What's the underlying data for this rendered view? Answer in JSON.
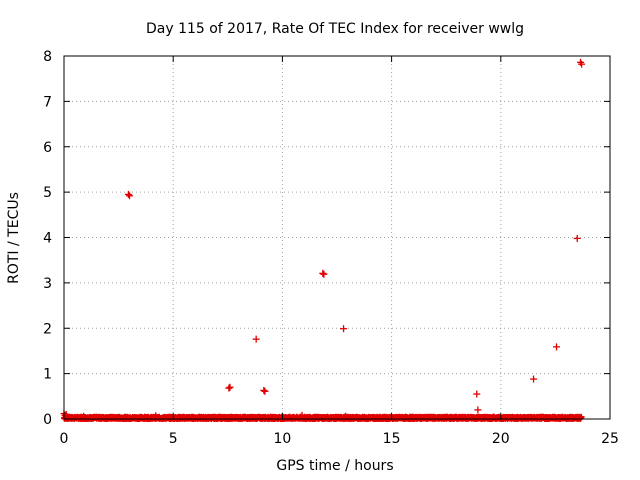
{
  "chart_data": {
    "type": "scatter",
    "title": "Day 115 of 2017, Rate Of TEC Index for receiver wwlg",
    "xlabel": "GPS time / hours",
    "ylabel": "ROTI / TECUs",
    "xlim": [
      0,
      25
    ],
    "ylim": [
      0,
      8
    ],
    "xticks": [
      "0",
      "5",
      "10",
      "15",
      "20",
      "25"
    ],
    "yticks": [
      "0",
      "1",
      "2",
      "3",
      "4",
      "5",
      "6",
      "7",
      "8"
    ],
    "grid": true,
    "marker": "+",
    "color": "#e00000",
    "baseline": {
      "x_start": 0,
      "x_end": 23.7,
      "x_step": 0.0083,
      "y_range": [
        0,
        0.05
      ]
    },
    "points": [
      {
        "x": 0.0,
        "y": 0.12
      },
      {
        "x": 0.05,
        "y": 0.08
      },
      {
        "x": 0.1,
        "y": 0.1
      },
      {
        "x": 0.9,
        "y": 0.06
      },
      {
        "x": 2.95,
        "y": 4.95
      },
      {
        "x": 3.0,
        "y": 4.92
      },
      {
        "x": 4.2,
        "y": 0.07
      },
      {
        "x": 7.55,
        "y": 0.68
      },
      {
        "x": 7.6,
        "y": 0.7
      },
      {
        "x": 8.8,
        "y": 1.76
      },
      {
        "x": 9.15,
        "y": 0.63
      },
      {
        "x": 9.2,
        "y": 0.61
      },
      {
        "x": 10.9,
        "y": 0.08
      },
      {
        "x": 11.85,
        "y": 3.21
      },
      {
        "x": 11.9,
        "y": 3.19
      },
      {
        "x": 12.8,
        "y": 1.99
      },
      {
        "x": 12.9,
        "y": 0.06
      },
      {
        "x": 18.9,
        "y": 0.55
      },
      {
        "x": 18.95,
        "y": 0.2
      },
      {
        "x": 21.5,
        "y": 0.88
      },
      {
        "x": 22.55,
        "y": 1.59
      },
      {
        "x": 23.5,
        "y": 3.98
      },
      {
        "x": 23.65,
        "y": 7.86
      },
      {
        "x": 23.7,
        "y": 7.82
      }
    ]
  }
}
